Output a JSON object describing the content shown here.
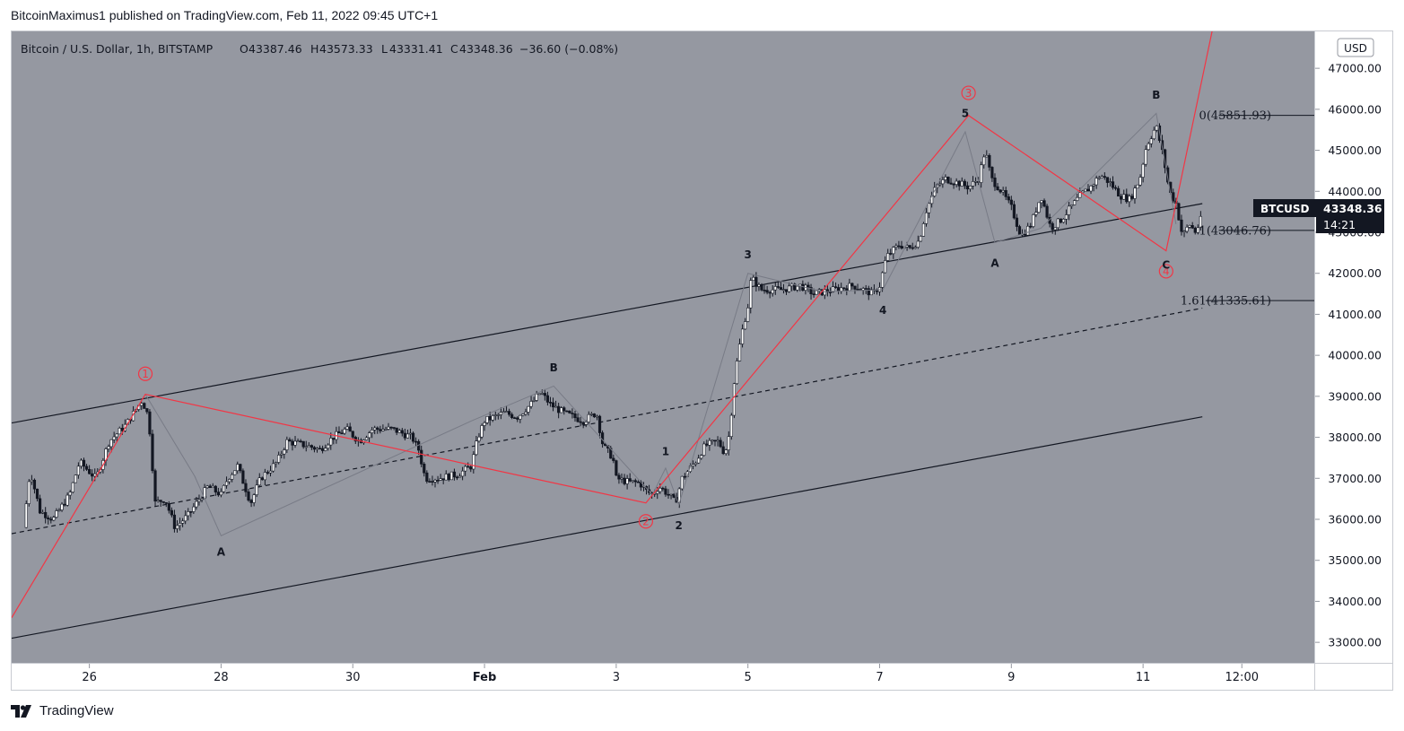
{
  "publisher_line": "BitcoinMaximus1 published on TradingView.com, Feb 11, 2022 09:45 UTC+1",
  "footer_brand": "TradingView",
  "legend": {
    "symbol": "Bitcoin / U.S. Dollar, 1h, BITSTAMP",
    "o_label": "O",
    "o": "43387.46",
    "h_label": "H",
    "h": "43573.33",
    "l_label": "L",
    "l": "43331.41",
    "c_label": "C",
    "c": "43348.36",
    "change": "−36.60 (−0.08%)"
  },
  "currency_button": "USD",
  "price_tag": {
    "ticker": "BTCUSD",
    "price": "43348.36",
    "countdown": "14:21"
  },
  "fib_labels": [
    {
      "text": "0(45851.93)",
      "price": 45851.93
    },
    {
      "text": "1(43046.76)",
      "price": 43046.76
    },
    {
      "text": "1.61(41335.61)",
      "price": 41335.61
    }
  ],
  "colors": {
    "background": "#9598a1",
    "candle": "#131722",
    "red": "#f23645",
    "channel": "#131722",
    "wave_gray": "#787b86",
    "axis_bg": "#ffffff"
  },
  "chart_data": {
    "type": "candlestick",
    "ylim": [
      32500,
      47900
    ],
    "y_ticks": [
      "47000.00",
      "46000.00",
      "45000.00",
      "44000.00",
      "43000.00",
      "42000.00",
      "41000.00",
      "40000.00",
      "39000.00",
      "38000.00",
      "37000.00",
      "36000.00",
      "35000.00",
      "34000.00",
      "33000.00"
    ],
    "x_ticks": [
      {
        "label": "26",
        "x": 1.0
      },
      {
        "label": "28",
        "x": 3.0
      },
      {
        "label": "30",
        "x": 5.0
      },
      {
        "label": "Feb",
        "x": 7.0
      },
      {
        "label": "3",
        "x": 9.0
      },
      {
        "label": "5",
        "x": 11.0
      },
      {
        "label": "7",
        "x": 13.0
      },
      {
        "label": "9",
        "x": 15.0
      },
      {
        "label": "11",
        "x": 17.0
      },
      {
        "label": "12:00",
        "x": 18.5
      }
    ],
    "xlim": [
      -0.18,
      19.6
    ],
    "close_path": [
      [
        0.0,
        35800
      ],
      [
        0.1,
        37200
      ],
      [
        0.25,
        36200
      ],
      [
        0.45,
        36000
      ],
      [
        0.7,
        36600
      ],
      [
        0.85,
        37400
      ],
      [
        1.1,
        37000
      ],
      [
        1.3,
        37900
      ],
      [
        1.55,
        38300
      ],
      [
        1.8,
        38900
      ],
      [
        1.9,
        38500
      ],
      [
        2.0,
        36400
      ],
      [
        2.15,
        36500
      ],
      [
        2.3,
        35800
      ],
      [
        2.5,
        36100
      ],
      [
        2.8,
        36800
      ],
      [
        3.0,
        36600
      ],
      [
        3.1,
        37000
      ],
      [
        3.25,
        37300
      ],
      [
        3.45,
        36400
      ],
      [
        3.6,
        37000
      ],
      [
        3.85,
        37400
      ],
      [
        4.0,
        37900
      ],
      [
        4.3,
        37800
      ],
      [
        4.5,
        37700
      ],
      [
        4.7,
        38000
      ],
      [
        4.9,
        38200
      ],
      [
        5.1,
        37900
      ],
      [
        5.3,
        38200
      ],
      [
        5.6,
        38200
      ],
      [
        5.9,
        38000
      ],
      [
        6.0,
        37700
      ],
      [
        6.1,
        37000
      ],
      [
        6.3,
        37000
      ],
      [
        6.6,
        37100
      ],
      [
        6.8,
        37300
      ],
      [
        6.9,
        38000
      ],
      [
        7.0,
        38400
      ],
      [
        7.3,
        38600
      ],
      [
        7.5,
        38500
      ],
      [
        7.7,
        38800
      ],
      [
        7.85,
        39100
      ],
      [
        8.0,
        38800
      ],
      [
        8.2,
        38600
      ],
      [
        8.35,
        38500
      ],
      [
        8.5,
        38400
      ],
      [
        8.7,
        38600
      ],
      [
        8.8,
        37800
      ],
      [
        8.95,
        37500
      ],
      [
        9.0,
        37000
      ],
      [
        9.2,
        36900
      ],
      [
        9.35,
        36900
      ],
      [
        9.45,
        36700
      ],
      [
        9.55,
        36600
      ],
      [
        9.65,
        36800
      ],
      [
        9.8,
        36600
      ],
      [
        9.9,
        36400
      ],
      [
        10.0,
        37000
      ],
      [
        10.2,
        37400
      ],
      [
        10.35,
        37800
      ],
      [
        10.55,
        37900
      ],
      [
        10.65,
        37600
      ],
      [
        10.72,
        38100
      ],
      [
        10.8,
        39500
      ],
      [
        10.9,
        40500
      ],
      [
        11.0,
        41200
      ],
      [
        11.05,
        41900
      ],
      [
        11.2,
        41600
      ],
      [
        11.5,
        41600
      ],
      [
        11.8,
        41700
      ],
      [
        12.0,
        41500
      ],
      [
        12.3,
        41600
      ],
      [
        12.6,
        41700
      ],
      [
        12.9,
        41500
      ],
      [
        13.0,
        41700
      ],
      [
        13.1,
        42400
      ],
      [
        13.3,
        42700
      ],
      [
        13.45,
        42600
      ],
      [
        13.6,
        42800
      ],
      [
        13.7,
        43500
      ],
      [
        13.85,
        44100
      ],
      [
        14.0,
        44300
      ],
      [
        14.2,
        44200
      ],
      [
        14.35,
        44100
      ],
      [
        14.5,
        44300
      ],
      [
        14.6,
        45000
      ],
      [
        14.7,
        44300
      ],
      [
        14.85,
        44000
      ],
      [
        15.0,
        43600
      ],
      [
        15.15,
        42900
      ],
      [
        15.3,
        43200
      ],
      [
        15.45,
        43900
      ],
      [
        15.6,
        43100
      ],
      [
        15.75,
        43300
      ],
      [
        15.9,
        43600
      ],
      [
        16.05,
        43900
      ],
      [
        16.2,
        44100
      ],
      [
        16.35,
        44400
      ],
      [
        16.5,
        44200
      ],
      [
        16.65,
        43900
      ],
      [
        16.8,
        43800
      ],
      [
        16.95,
        44300
      ],
      [
        17.05,
        45100
      ],
      [
        17.2,
        45600
      ],
      [
        17.3,
        44900
      ],
      [
        17.4,
        44000
      ],
      [
        17.5,
        43700
      ],
      [
        17.6,
        42900
      ],
      [
        17.7,
        43200
      ],
      [
        17.8,
        43000
      ],
      [
        17.9,
        43400
      ]
    ],
    "channel_lines": [
      {
        "style": "solid",
        "points": [
          [
            -0.18,
            38350
          ],
          [
            17.9,
            43700
          ]
        ]
      },
      {
        "style": "dashed",
        "points": [
          [
            -0.18,
            35650
          ],
          [
            17.9,
            41150
          ]
        ]
      },
      {
        "style": "solid",
        "points": [
          [
            -0.18,
            33100
          ],
          [
            17.9,
            38500
          ]
        ]
      }
    ],
    "red_wave": [
      [
        -0.18,
        33600
      ],
      [
        1.85,
        39050
      ],
      [
        9.45,
        36400
      ],
      [
        14.35,
        45850
      ],
      [
        17.35,
        42550
      ],
      [
        18.1,
        48300
      ]
    ],
    "gray_wave": [
      [
        1.85,
        39050
      ],
      [
        2.6,
        37050
      ],
      [
        3.0,
        35600
      ],
      [
        6.8,
        38400
      ],
      [
        8.05,
        39250
      ],
      [
        9.55,
        36600
      ],
      [
        9.75,
        37250
      ],
      [
        9.95,
        36350
      ],
      [
        11.0,
        42000
      ],
      [
        12.15,
        41550
      ],
      [
        13.05,
        41600
      ],
      [
        14.3,
        45450
      ],
      [
        14.75,
        42750
      ],
      [
        15.45,
        43100
      ],
      [
        17.2,
        45900
      ],
      [
        17.5,
        43200
      ]
    ],
    "fib_lines": [
      {
        "price": 45851.93,
        "x0": 18.15
      },
      {
        "price": 43046.76,
        "x0": 18.15
      },
      {
        "price": 41335.61,
        "x0": 17.95
      }
    ],
    "annotations": [
      {
        "text": "1",
        "kind": "circle-red",
        "x": 1.85,
        "y": 39550
      },
      {
        "text": "2",
        "kind": "circle-red",
        "x": 9.45,
        "y": 35950
      },
      {
        "text": "3",
        "kind": "circle-red",
        "x": 14.35,
        "y": 46400
      },
      {
        "text": "4",
        "kind": "circle-red",
        "x": 17.35,
        "y": 42050
      },
      {
        "text": "A",
        "kind": "black",
        "x": 3.0,
        "y": 35200
      },
      {
        "text": "B",
        "kind": "black",
        "x": 8.05,
        "y": 39700
      },
      {
        "text": "1",
        "kind": "black",
        "x": 9.75,
        "y": 37650
      },
      {
        "text": "2",
        "kind": "black",
        "x": 9.95,
        "y": 35850
      },
      {
        "text": "3",
        "kind": "black",
        "x": 11.0,
        "y": 42450
      },
      {
        "text": "4",
        "kind": "black",
        "x": 13.05,
        "y": 41100
      },
      {
        "text": "5",
        "kind": "black",
        "x": 14.3,
        "y": 45900
      },
      {
        "text": "A",
        "kind": "black",
        "x": 14.75,
        "y": 42250
      },
      {
        "text": "B",
        "kind": "black",
        "x": 17.2,
        "y": 46350
      },
      {
        "text": "C",
        "kind": "black",
        "x": 17.35,
        "y": 42200
      }
    ]
  }
}
